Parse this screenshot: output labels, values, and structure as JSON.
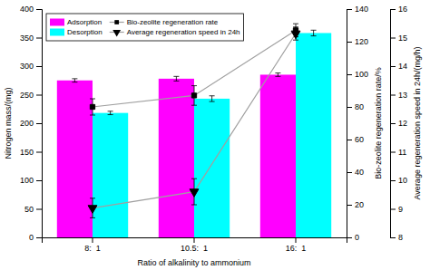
{
  "chart_data": {
    "type": "bar",
    "categories": [
      "8:  1",
      "10.5:  1",
      "16:  1"
    ],
    "xlabel": "Ratio of alkalinity to ammonium",
    "ylabel": "Nitrogen mass/(mg)",
    "y2label": "Bio-zeolite regeneration rate/%",
    "y3label": "Average regeneration speed in 24h/(mg/h)",
    "ylim": [
      0,
      400
    ],
    "yticks": [
      0,
      50,
      100,
      150,
      200,
      250,
      300,
      350,
      400
    ],
    "y2lim": [
      0,
      140
    ],
    "y2ticks": [
      0,
      20,
      40,
      60,
      80,
      100,
      120,
      140
    ],
    "y3lim": [
      8,
      16
    ],
    "y3ticks": [
      8,
      9,
      10,
      11,
      12,
      13,
      14,
      15,
      16
    ],
    "grid": false,
    "legend": "upper left",
    "series": [
      {
        "name": "Adsorption",
        "type": "bar",
        "color": "#FF00FF",
        "values": [
          275,
          278,
          285
        ],
        "errors": [
          3,
          4,
          3
        ]
      },
      {
        "name": "Desorption",
        "type": "bar",
        "color": "#00FFFF",
        "values": [
          218,
          243,
          358
        ],
        "errors": [
          3,
          5,
          5
        ]
      },
      {
        "name": "Bio-zeolite regeneration rate",
        "type": "line",
        "axis": "y2",
        "color": "#A0A0A0",
        "marker": "square",
        "line_style": "solid",
        "values": [
          80,
          87,
          127
        ],
        "errors": [
          5,
          6,
          4
        ]
      },
      {
        "name": "Average regeneration speed in 24h",
        "type": "line",
        "axis": "y2",
        "color": "#A0A0A0",
        "marker": "triangle_down",
        "line_style": "solid",
        "values": [
          18,
          28,
          125
        ],
        "errors": [
          6,
          8,
          4
        ]
      }
    ]
  }
}
